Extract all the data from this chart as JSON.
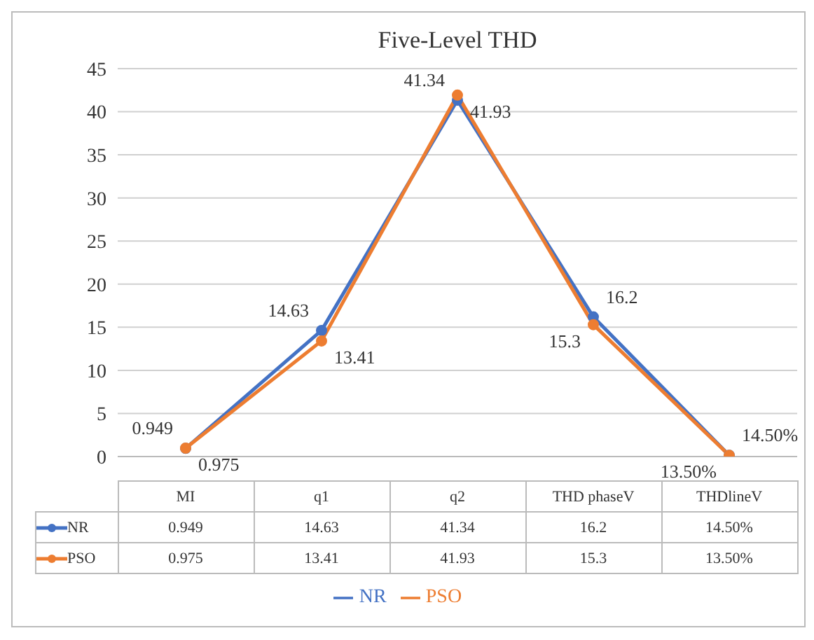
{
  "chart_data": {
    "type": "line",
    "title": "Five-Level THD",
    "categories": [
      "MI",
      "q1",
      "q2",
      "THD phaseV",
      "THDlineV"
    ],
    "series": [
      {
        "name": "NR",
        "color": "#4472c4",
        "values": [
          0.949,
          14.63,
          41.34,
          16.2,
          0.145
        ],
        "value_labels": [
          "0.949",
          "14.63",
          "41.34",
          "16.2",
          "14.50%"
        ]
      },
      {
        "name": "PSO",
        "color": "#ed7d31",
        "values": [
          0.975,
          13.41,
          41.93,
          15.3,
          0.135
        ],
        "value_labels": [
          "0.975",
          "13.41",
          "41.93",
          "15.3",
          "13.50%"
        ]
      }
    ],
    "ylim": [
      0,
      45
    ],
    "yticks": [
      0,
      5,
      10,
      15,
      20,
      25,
      30,
      35,
      40,
      45
    ],
    "grid": "y",
    "legend": "bottom",
    "marker": "circle",
    "line_style": "solid",
    "data_labels": true
  }
}
